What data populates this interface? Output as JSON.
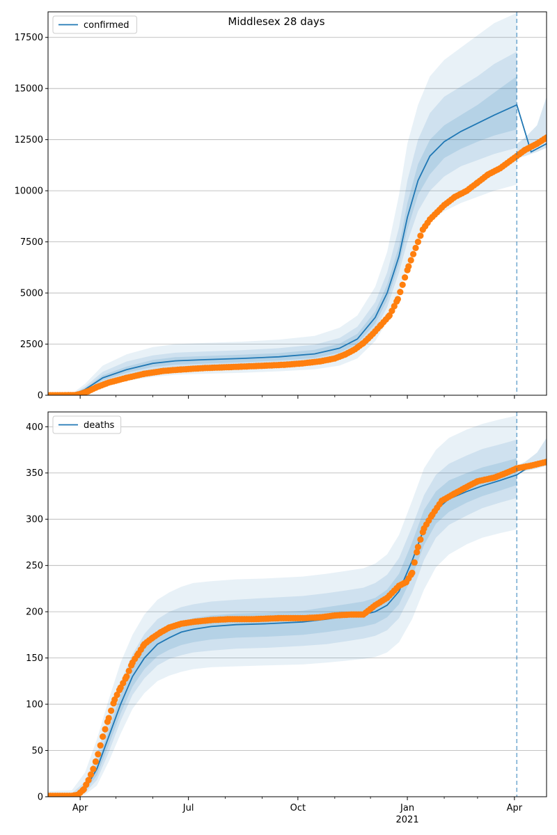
{
  "figure": {
    "title": "Middlesex 28 days"
  },
  "colors": {
    "model": "#1f77b4",
    "observed": "#ff7f0e",
    "band": "#1f77b4",
    "grid": "#b0b0b0",
    "forecast_line": "#1f77b4"
  },
  "chart_data": [
    {
      "type": "line",
      "legend": "confirmed",
      "legend_position": "top-left",
      "grid": "horizontal",
      "x_ticks": [
        "Apr",
        "Jul",
        "Oct",
        "Jan",
        "Apr"
      ],
      "x_tick_dates": [
        "2020-04-01",
        "2020-07-01",
        "2020-10-01",
        "2021-01-01",
        "2021-04-01"
      ],
      "x_year_label": "2021",
      "xlim": [
        "2020-03-05",
        "2021-04-28"
      ],
      "ylim": [
        0,
        18750
      ],
      "y_ticks": [
        0,
        2500,
        5000,
        7500,
        10000,
        12500,
        15000,
        17500
      ],
      "forecast_date": "2021-04-03",
      "model": {
        "x": [
          "2020-03-05",
          "2020-03-25",
          "2020-04-05",
          "2020-04-20",
          "2020-05-10",
          "2020-06-01",
          "2020-06-20",
          "2020-07-15",
          "2020-08-15",
          "2020-09-15",
          "2020-10-15",
          "2020-11-05",
          "2020-11-20",
          "2020-12-05",
          "2020-12-15",
          "2020-12-25",
          "2021-01-01",
          "2021-01-10",
          "2021-01-20",
          "2021-02-01",
          "2021-02-15",
          "2021-03-01",
          "2021-03-15",
          "2021-04-03",
          "2021-04-15",
          "2021-04-28"
        ],
        "y": [
          0,
          20,
          280,
          850,
          1250,
          1560,
          1680,
          1740,
          1800,
          1880,
          2020,
          2300,
          2750,
          3800,
          5000,
          6800,
          8700,
          10500,
          11700,
          12400,
          12900,
          13300,
          13700,
          14200,
          11900,
          12300
        ]
      },
      "bands": {
        "x": [
          "2020-03-05",
          "2020-03-25",
          "2020-04-05",
          "2020-04-20",
          "2020-05-10",
          "2020-06-01",
          "2020-06-20",
          "2020-07-15",
          "2020-08-15",
          "2020-09-15",
          "2020-10-15",
          "2020-11-05",
          "2020-11-20",
          "2020-12-05",
          "2020-12-15",
          "2020-12-25",
          "2021-01-01",
          "2021-01-10",
          "2021-01-20",
          "2021-02-01",
          "2021-02-15",
          "2021-03-01",
          "2021-03-15",
          "2021-04-03"
        ],
        "outer_low": [
          0,
          0,
          120,
          450,
          700,
          900,
          1000,
          1050,
          1100,
          1170,
          1270,
          1450,
          1800,
          2650,
          3600,
          5000,
          6300,
          7600,
          8500,
          9000,
          9400,
          9700,
          10000,
          10300
        ],
        "outer_high": [
          0,
          70,
          550,
          1450,
          2000,
          2350,
          2500,
          2560,
          2620,
          2720,
          2900,
          3300,
          3900,
          5300,
          7000,
          9800,
          12300,
          14200,
          15600,
          16400,
          17000,
          17600,
          18200,
          18700
        ],
        "mid_low": [
          0,
          5,
          180,
          600,
          950,
          1200,
          1300,
          1360,
          1420,
          1500,
          1630,
          1880,
          2300,
          3200,
          4300,
          6000,
          7500,
          9000,
          10000,
          10700,
          11200,
          11500,
          11800,
          12100
        ],
        "mid_high": [
          0,
          45,
          420,
          1150,
          1650,
          1950,
          2080,
          2140,
          2200,
          2300,
          2470,
          2800,
          3350,
          4550,
          6000,
          8200,
          10500,
          12500,
          13800,
          14600,
          15100,
          15600,
          16200,
          16800
        ],
        "inner_low": [
          0,
          10,
          230,
          720,
          1100,
          1380,
          1490,
          1550,
          1610,
          1690,
          1820,
          2080,
          2520,
          3500,
          4650,
          6400,
          8100,
          9800,
          10800,
          11600,
          12050,
          12400,
          12700,
          13000
        ],
        "inner_high": [
          0,
          30,
          340,
          980,
          1400,
          1730,
          1860,
          1920,
          1980,
          2060,
          2220,
          2520,
          3000,
          4100,
          5400,
          7300,
          9400,
          11300,
          12500,
          13200,
          13700,
          14200,
          14800,
          15600
        ]
      },
      "late_band": {
        "x": [
          "2021-04-03",
          "2021-04-10",
          "2021-04-20",
          "2021-04-28"
        ],
        "low": [
          11600,
          11700,
          11900,
          12100
        ],
        "high": [
          12300,
          12600,
          13200,
          14600
        ]
      },
      "observed": {
        "x": [
          "2020-03-05",
          "2020-03-20",
          "2020-03-28",
          "2020-04-01",
          "2020-04-08",
          "2020-04-15",
          "2020-04-25",
          "2020-05-10",
          "2020-05-25",
          "2020-06-10",
          "2020-06-25",
          "2020-07-15",
          "2020-08-15",
          "2020-09-01",
          "2020-09-20",
          "2020-10-05",
          "2020-10-20",
          "2020-11-01",
          "2020-11-10",
          "2020-11-18",
          "2020-11-25",
          "2020-12-03",
          "2020-12-10",
          "2020-12-17",
          "2020-12-24",
          "2020-12-28",
          "2021-01-02",
          "2021-01-08",
          "2021-01-14",
          "2021-01-20",
          "2021-02-01",
          "2021-02-10",
          "2021-02-20",
          "2021-03-01",
          "2021-03-10",
          "2021-03-20",
          "2021-04-03",
          "2021-04-10",
          "2021-04-20",
          "2021-04-28"
        ],
        "y": [
          0,
          0,
          10,
          60,
          200,
          400,
          620,
          850,
          1050,
          1190,
          1260,
          1330,
          1400,
          1440,
          1490,
          1560,
          1660,
          1800,
          2000,
          2250,
          2550,
          3000,
          3450,
          3900,
          4700,
          5400,
          6300,
          7200,
          8100,
          8600,
          9300,
          9700,
          10000,
          10400,
          10800,
          11100,
          11700,
          12000,
          12300,
          12600
        ]
      }
    },
    {
      "type": "line",
      "legend": "deaths",
      "legend_position": "top-left",
      "grid": "horizontal",
      "x_ticks": [
        "Apr",
        "Jul",
        "Oct",
        "Jan",
        "Apr"
      ],
      "x_tick_dates": [
        "2020-04-01",
        "2020-07-01",
        "2020-10-01",
        "2021-01-01",
        "2021-04-01"
      ],
      "x_year_label": "2021",
      "xlim": [
        "2020-03-05",
        "2021-04-28"
      ],
      "ylim": [
        0,
        416
      ],
      "y_ticks": [
        0,
        50,
        100,
        150,
        200,
        250,
        300,
        350,
        400
      ],
      "forecast_date": "2021-04-03",
      "model": {
        "x": [
          "2020-03-05",
          "2020-03-25",
          "2020-04-05",
          "2020-04-15",
          "2020-04-25",
          "2020-05-05",
          "2020-05-15",
          "2020-05-25",
          "2020-06-05",
          "2020-06-15",
          "2020-06-25",
          "2020-07-05",
          "2020-07-20",
          "2020-08-10",
          "2020-09-05",
          "2020-10-05",
          "2020-10-25",
          "2020-11-10",
          "2020-11-25",
          "2020-12-05",
          "2020-12-15",
          "2020-12-25",
          "2021-01-05",
          "2021-01-15",
          "2021-01-25",
          "2021-02-05",
          "2021-02-20",
          "2021-03-05",
          "2021-03-20",
          "2021-04-03",
          "2021-04-15",
          "2021-04-28"
        ],
        "y": [
          0,
          0,
          8,
          30,
          65,
          100,
          130,
          150,
          165,
          172,
          178,
          181,
          184,
          186,
          187,
          189,
          192,
          195,
          197,
          200,
          207,
          222,
          255,
          290,
          310,
          322,
          330,
          336,
          342,
          348,
          358,
          362
        ]
      },
      "bands": {
        "x": [
          "2020-03-05",
          "2020-03-25",
          "2020-04-05",
          "2020-04-15",
          "2020-04-25",
          "2020-05-05",
          "2020-05-15",
          "2020-05-25",
          "2020-06-05",
          "2020-06-15",
          "2020-06-25",
          "2020-07-05",
          "2020-07-20",
          "2020-08-10",
          "2020-09-05",
          "2020-10-05",
          "2020-10-25",
          "2020-11-10",
          "2020-11-25",
          "2020-12-05",
          "2020-12-15",
          "2020-12-25",
          "2021-01-05",
          "2021-01-15",
          "2021-01-25",
          "2021-02-05",
          "2021-02-20",
          "2021-03-05",
          "2021-03-20",
          "2021-04-03"
        ],
        "outer_low": [
          0,
          0,
          2,
          12,
          38,
          68,
          95,
          112,
          125,
          131,
          135,
          138,
          140,
          141,
          142,
          143,
          145,
          147,
          149,
          151,
          156,
          167,
          192,
          224,
          248,
          262,
          273,
          280,
          285,
          289
        ],
        "outer_high": [
          6,
          7,
          26,
          62,
          105,
          145,
          175,
          197,
          213,
          221,
          227,
          231,
          233,
          235,
          236,
          238,
          241,
          244,
          247,
          252,
          262,
          283,
          320,
          355,
          375,
          388,
          397,
          403,
          408,
          412
        ],
        "mid_low": [
          0,
          0,
          4,
          18,
          48,
          82,
          110,
          128,
          142,
          149,
          153,
          156,
          158,
          160,
          161,
          163,
          165,
          168,
          171,
          174,
          180,
          193,
          221,
          256,
          280,
          294,
          304,
          312,
          318,
          323
        ],
        "mid_high": [
          3,
          4,
          16,
          46,
          86,
          124,
          154,
          176,
          192,
          200,
          205,
          208,
          211,
          213,
          215,
          217,
          220,
          223,
          226,
          231,
          240,
          258,
          292,
          326,
          348,
          360,
          369,
          376,
          381,
          386
        ],
        "inner_low": [
          0,
          0,
          6,
          23,
          56,
          90,
          119,
          138,
          152,
          159,
          164,
          167,
          170,
          172,
          173,
          175,
          178,
          181,
          184,
          187,
          194,
          208,
          238,
          272,
          295,
          308,
          318,
          325,
          331,
          337
        ],
        "inner_high": [
          1,
          2,
          11,
          36,
          72,
          110,
          140,
          161,
          176,
          184,
          189,
          193,
          196,
          198,
          199,
          201,
          205,
          208,
          211,
          215,
          224,
          241,
          275,
          310,
          330,
          342,
          350,
          356,
          361,
          366
        ]
      },
      "late_band": {
        "x": [
          "2021-04-03",
          "2021-04-10",
          "2021-04-20",
          "2021-04-28"
        ],
        "low": [
          350,
          352,
          355,
          358
        ],
        "high": [
          358,
          362,
          372,
          388
        ]
      },
      "observed": {
        "x": [
          "2020-03-05",
          "2020-03-25",
          "2020-03-30",
          "2020-04-04",
          "2020-04-08",
          "2020-04-12",
          "2020-04-16",
          "2020-04-20",
          "2020-04-25",
          "2020-04-30",
          "2020-05-05",
          "2020-05-10",
          "2020-05-15",
          "2020-05-20",
          "2020-05-25",
          "2020-06-01",
          "2020-06-08",
          "2020-06-15",
          "2020-06-25",
          "2020-07-05",
          "2020-07-20",
          "2020-08-05",
          "2020-08-25",
          "2020-09-15",
          "2020-10-05",
          "2020-10-20",
          "2020-11-01",
          "2020-11-15",
          "2020-11-25",
          "2020-12-05",
          "2020-12-15",
          "2020-12-25",
          "2020-12-31",
          "2021-01-05",
          "2021-01-10",
          "2021-01-15",
          "2021-01-22",
          "2021-01-30",
          "2021-02-10",
          "2021-02-20",
          "2021-03-01",
          "2021-03-15",
          "2021-03-25",
          "2021-04-03",
          "2021-04-15",
          "2021-04-28"
        ],
        "y": [
          1,
          1,
          2,
          8,
          18,
          30,
          46,
          65,
          85,
          105,
          118,
          130,
          145,
          155,
          165,
          172,
          178,
          183,
          187,
          189,
          191,
          192,
          192,
          193,
          193,
          194,
          196,
          197,
          197,
          207,
          215,
          228,
          232,
          242,
          270,
          290,
          305,
          320,
          328,
          335,
          341,
          345,
          350,
          355,
          358,
          362
        ]
      }
    }
  ]
}
